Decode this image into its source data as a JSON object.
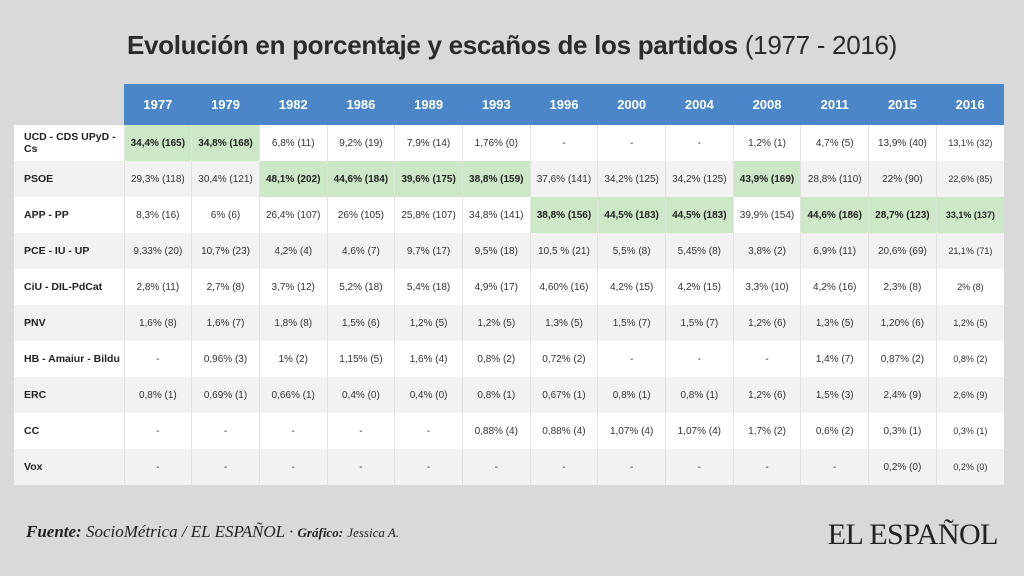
{
  "title": {
    "main": "Evolución en porcentaje y escaños de los partidos",
    "years": "(1977 - 2016)"
  },
  "table": {
    "years": [
      "1977",
      "1979",
      "1982",
      "1986",
      "1989",
      "1993",
      "1996",
      "2000",
      "2004",
      "2008",
      "2011",
      "2015",
      "2016"
    ],
    "rows": [
      {
        "party": "UCD - CDS UPyD - Cs",
        "cells": [
          "34,4% (165)",
          "34,8% (168)",
          "6,8% (11)",
          "9,2% (19)",
          "7,9% (14)",
          "1,76% (0)",
          "-",
          "-",
          "-",
          "1,2% (1)",
          "4,7% (5)",
          "13,9% (40)",
          "13,1% (32)"
        ],
        "highlight": [
          0,
          1
        ]
      },
      {
        "party": "PSOE",
        "cells": [
          "29,3% (118)",
          "30,4% (121)",
          "48,1% (202)",
          "44,6% (184)",
          "39,6% (175)",
          "38,8% (159)",
          "37,6% (141)",
          "34,2% (125)",
          "34,2% (125)",
          "43,9% (169)",
          "28,8% (110)",
          "22% (90)",
          "22,6% (85)"
        ],
        "highlight": [
          2,
          3,
          4,
          5,
          9
        ]
      },
      {
        "party": "APP - PP",
        "cells": [
          "8,3% (16)",
          "6% (6)",
          "26,4% (107)",
          "26% (105)",
          "25,8% (107)",
          "34,8% (141)",
          "38,8% (156)",
          "44,5% (183)",
          "44,5% (183)",
          "39,9% (154)",
          "44,6% (186)",
          "28,7% (123)",
          "33,1% (137)"
        ],
        "highlight": [
          6,
          7,
          8,
          10,
          11,
          12
        ]
      },
      {
        "party": "PCE - IU - UP",
        "cells": [
          "9,33% (20)",
          "10,7% (23)",
          "4,2% (4)",
          "4,6% (7)",
          "9,7% (17)",
          "9,5% (18)",
          "10,5 % (21)",
          "5,5% (8)",
          "5,45% (8)",
          "3,8% (2)",
          "6,9% (11)",
          "20,6% (69)",
          "21,1% (71)"
        ],
        "highlight": []
      },
      {
        "party": "CiU - DIL-PdCat",
        "cells": [
          "2,8% (11)",
          "2,7% (8)",
          "3,7% (12)",
          "5,2% (18)",
          "5,4% (18)",
          "4,9% (17)",
          "4,60% (16)",
          "4,2% (15)",
          "4,2% (15)",
          "3,3% (10)",
          "4,2% (16)",
          "2,3% (8)",
          "2% (8)"
        ],
        "highlight": []
      },
      {
        "party": "PNV",
        "cells": [
          "1,6% (8)",
          "1,6% (7)",
          "1,8% (8)",
          "1,5% (6)",
          "1,2% (5)",
          "1,2% (5)",
          "1,3% (5)",
          "1,5% (7)",
          "1,5% (7)",
          "1,2% (6)",
          "1,3% (5)",
          "1,20% (6)",
          "1,2% (5)"
        ],
        "highlight": []
      },
      {
        "party": "HB - Amaiur - Bildu",
        "cells": [
          "-",
          "0,96% (3)",
          "1% (2)",
          "1,15% (5)",
          "1,6% (4)",
          "0,8% (2)",
          "0,72% (2)",
          "-",
          "-",
          "-",
          "1,4% (7)",
          "0,87% (2)",
          "0,8% (2)"
        ],
        "highlight": []
      },
      {
        "party": "ERC",
        "cells": [
          "0,8% (1)",
          "0,69% (1)",
          "0,66% (1)",
          "0,4% (0)",
          "0,4% (0)",
          "0,8% (1)",
          "0,67% (1)",
          "0,8% (1)",
          "0,8% (1)",
          "1,2% (6)",
          "1,5% (3)",
          "2,4% (9)",
          "2,6% (9)"
        ],
        "highlight": []
      },
      {
        "party": "CC",
        "cells": [
          "-",
          "-",
          "-",
          "-",
          "-",
          "0,88% (4)",
          "0,88% (4)",
          "1,07% (4)",
          "1,07% (4)",
          "1,7% (2)",
          "0,6% (2)",
          "0,3% (1)",
          "0,3% (1)"
        ],
        "highlight": []
      },
      {
        "party": "Vox",
        "cells": [
          "-",
          "-",
          "-",
          "-",
          "-",
          "-",
          "-",
          "-",
          "-",
          "-",
          "-",
          "0,2% (0)",
          "0,2% (0)"
        ],
        "highlight": []
      }
    ]
  },
  "footer": {
    "source_label": "Fuente:",
    "source_text": "SocioMétrica / EL ESPAÑOL ·",
    "graphic_label": "Gráfico:",
    "graphic_text": "Jessica A."
  },
  "logo": "EL ESPAÑOL"
}
